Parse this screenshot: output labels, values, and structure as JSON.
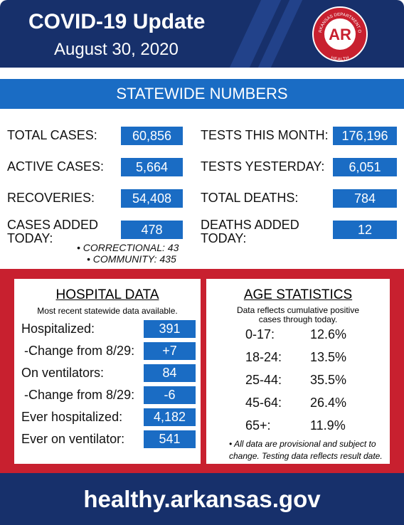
{
  "header": {
    "title": "COVID-19 Update",
    "date": "August 30, 2020",
    "logo": {
      "letters": "AR",
      "ring_top": "ARKANSAS DEPARTMENT OF",
      "ring_bottom": "HEALTH"
    }
  },
  "statewide": {
    "title": "STATEWIDE NUMBERS",
    "left": [
      {
        "label": "TOTAL CASES:",
        "value": "60,856"
      },
      {
        "label": "ACTIVE CASES:",
        "value": "5,664"
      },
      {
        "label": "RECOVERIES:",
        "value": "54,408"
      },
      {
        "label": "CASES ADDED TODAY:",
        "value": "478"
      }
    ],
    "right": [
      {
        "label": "TESTS THIS MONTH:",
        "value": "176,196"
      },
      {
        "label": "TESTS YESTERDAY:",
        "value": "6,051"
      },
      {
        "label": "TOTAL DEATHS:",
        "value": "784"
      },
      {
        "label": "DEATHS ADDED TODAY:",
        "value": "12"
      }
    ],
    "notes": [
      "• CORRECTIONAL: 43",
      "• COMMUNITY: 435"
    ]
  },
  "hospital": {
    "title": "HOSPITAL DATA",
    "subtitle": "Most recent statewide data available.",
    "rows": [
      [
        "Hospitalized:",
        "391"
      ],
      [
        "-Change from 8/29:",
        "+7"
      ],
      [
        "On ventilators:",
        "84"
      ],
      [
        "-Change from 8/29:",
        "-6"
      ],
      [
        "Ever hospitalized:",
        "4,182"
      ],
      [
        "Ever on ventilator:",
        "541"
      ]
    ]
  },
  "age": {
    "title": "AGE STATISTICS",
    "subtitle": "Data reflects cumulative positive cases through today.",
    "rows": [
      [
        "0-17:",
        "12.6%"
      ],
      [
        "18-24:",
        "13.5%"
      ],
      [
        "25-44:",
        "35.5%"
      ],
      [
        "45-64:",
        "26.4%"
      ],
      [
        "65+:",
        "11.9%"
      ]
    ],
    "note": "• All data are provisional and subject to change. Testing data reflects result date."
  },
  "footer": {
    "url": "healthy.arkansas.gov"
  }
}
